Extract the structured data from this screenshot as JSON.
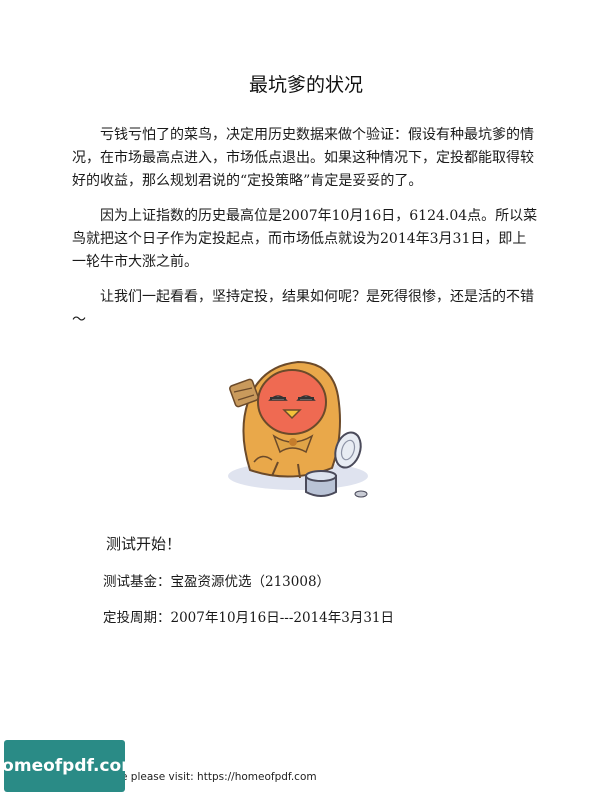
{
  "doc": {
    "title": "最坑爹的状况",
    "paragraphs": [
      "亏钱亏怕了的菜鸟，决定用历史数据来做个验证：假设有种最坑爹的情况，在市场最高点进入，市场低点退出。如果这种情况下，定投都能取得较好的收益，那么规划君说的“定投策略”肯定是妥妥的了。",
      "因为上证指数的历史最高位是2007年10月16日，6124.04点。所以菜鸟就把这个日子作为定投起点，而市场低点就设为2014年3月31日，即上一轮牛市大涨之前。",
      "让我们一起看看，坚持定投，结果如何呢？是死得很惨，还是活的不错～"
    ],
    "test_heading": "测试开始！",
    "fund_line": "测试基金：宝盈资源优选（213008）",
    "period_line": "定投周期：2007年10月16日---2014年3月31日"
  },
  "footer": {
    "badge": "homeofpdf.com",
    "text": "e please visit: https://homeofpdf.com"
  },
  "illustration": {
    "icon": "sad-bird-begging-icon"
  }
}
